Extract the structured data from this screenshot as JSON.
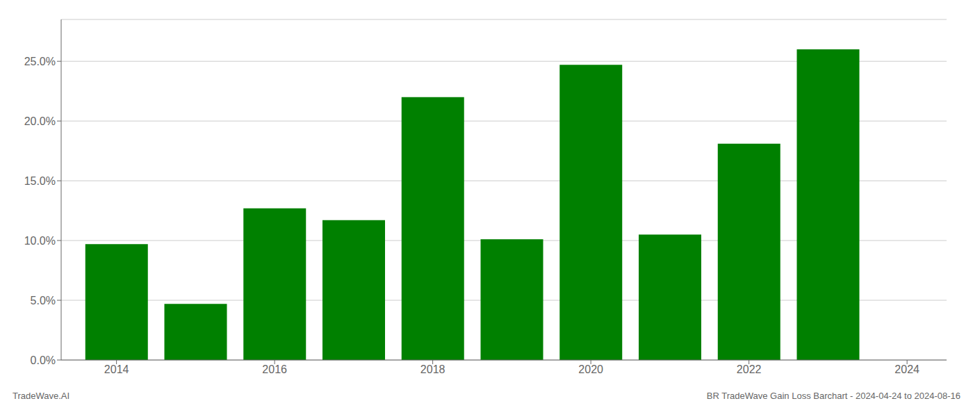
{
  "chart_data": {
    "type": "bar",
    "x": [
      2014,
      2015,
      2016,
      2017,
      2018,
      2019,
      2020,
      2021,
      2022,
      2023
    ],
    "values": [
      0.097,
      0.047,
      0.127,
      0.117,
      0.22,
      0.101,
      0.247,
      0.105,
      0.181,
      0.26
    ],
    "color": "#008000",
    "xlim": [
      2013.3,
      2024.5
    ],
    "xticks": [
      2014,
      2016,
      2018,
      2020,
      2022,
      2024
    ],
    "ylim": [
      0,
      0.285
    ],
    "yticks": [
      {
        "value": 0.0,
        "label": "0.0%"
      },
      {
        "value": 0.05,
        "label": "5.0%"
      },
      {
        "value": 0.1,
        "label": "10.0%"
      },
      {
        "value": 0.15,
        "label": "15.0%"
      },
      {
        "value": 0.2,
        "label": "20.0%"
      },
      {
        "value": 0.25,
        "label": "25.0%"
      }
    ],
    "grid": true,
    "annotations": [
      "TradeWave.AI",
      "BR TradeWave Gain Loss Barchart - 2024-04-24 to 2024-08-16"
    ]
  }
}
